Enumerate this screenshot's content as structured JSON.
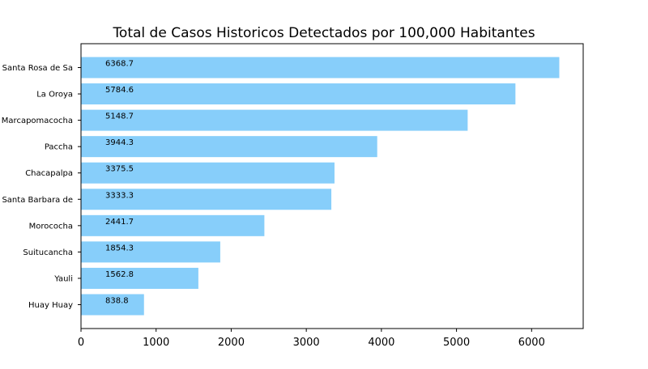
{
  "chart_data": {
    "type": "bar",
    "orientation": "horizontal",
    "title": "Total de Casos Historicos Detectados por 100,000 Habitantes",
    "xlabel": "",
    "ylabel": "",
    "categories": [
      "Santa Rosa de Sa",
      "La Oroya",
      "Marcapomacocha",
      "Paccha",
      "Chacapalpa",
      "Santa Barbara de",
      "Morococha",
      "Suitucancha",
      "Yauli",
      "Huay Huay"
    ],
    "values": [
      6368.7,
      5784.6,
      5148.7,
      3944.3,
      3375.5,
      3333.3,
      2441.7,
      1854.3,
      1562.8,
      838.8
    ],
    "data_labels": [
      "6368.7",
      "5784.6",
      "5148.7",
      "3944.3",
      "3375.5",
      "3333.3",
      "2441.7",
      "1854.3",
      "1562.8",
      "838.8"
    ],
    "xlim": [
      0,
      6687
    ],
    "xticks": [
      0,
      1000,
      2000,
      3000,
      4000,
      5000,
      6000
    ],
    "bar_color": "#87cefa",
    "grid": false
  }
}
